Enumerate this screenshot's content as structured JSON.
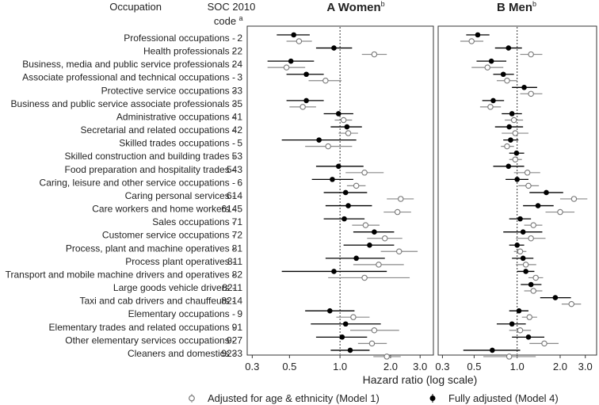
{
  "header": {
    "occupation_col": "Occupation",
    "soc_col": "SOC 2010",
    "soc_col2": "code",
    "soc_sup": "a"
  },
  "legend": {
    "model1": "Adjusted for age & ethnicity (Model 1)",
    "model4": "Fully adjusted (Model 4)"
  },
  "chart_data": {
    "type": "forest",
    "xlabel": "Hazard ratio (log scale)",
    "xscale": "log",
    "xlim": [
      0.28,
      3.6
    ],
    "ticks": [
      0.3,
      0.5,
      1.0,
      2.0,
      3.0
    ],
    "tick_labels": [
      "0.3",
      "0.5",
      "1.0",
      "2.0",
      "3.0"
    ],
    "reference_line": 1.0,
    "occupations": [
      {
        "name": "Professional occupations",
        "code": "2"
      },
      {
        "name": "Health professionals",
        "code": "22"
      },
      {
        "name": "Business, media and public service professionals",
        "code": "24"
      },
      {
        "name": "Associate professional and technical occupations",
        "code": "3"
      },
      {
        "name": "Protective service occupations",
        "code": "33"
      },
      {
        "name": "Business and public service associate professionals",
        "code": "35"
      },
      {
        "name": "Administrative occupations",
        "code": "41"
      },
      {
        "name": "Secretarial and related occupations",
        "code": "42"
      },
      {
        "name": "Skilled trades occupations",
        "code": "5"
      },
      {
        "name": "Skilled construction and building trades",
        "code": "53"
      },
      {
        "name": "Food preparation and hospitality trades",
        "code": "543"
      },
      {
        "name": "Caring, leisure and other service occupations",
        "code": "6"
      },
      {
        "name": "Caring personal services",
        "code": "614"
      },
      {
        "name": "Care workers and home workers",
        "code": "6145"
      },
      {
        "name": "Sales occupations",
        "code": "71"
      },
      {
        "name": "Customer service occupations",
        "code": "72"
      },
      {
        "name": "Process, plant and machine operatives",
        "code": "81"
      },
      {
        "name": "Process plant operatives",
        "code": "811"
      },
      {
        "name": "Transport and mobile machine drivers and operatives",
        "code": "82"
      },
      {
        "name": "Large goods vehicle drivers",
        "code": "8211"
      },
      {
        "name": "Taxi and cab drivers and chauffeurs",
        "code": "8214"
      },
      {
        "name": "Elementary occupations",
        "code": "9"
      },
      {
        "name": "Elementary trades and related occupations",
        "code": "91"
      },
      {
        "name": "Other elementary services occupations",
        "code": "927"
      },
      {
        "name": "Cleaners and domestics",
        "code": "9233"
      }
    ],
    "panels": [
      {
        "letter": "A",
        "title": "Women",
        "title_sup": "b",
        "model1": [
          [
            0.57,
            0.48,
            0.68
          ],
          [
            1.6,
            1.35,
            1.9
          ],
          [
            0.48,
            0.37,
            0.62
          ],
          [
            0.82,
            0.65,
            1.02
          ],
          null,
          [
            0.6,
            0.5,
            0.72
          ],
          [
            1.05,
            0.93,
            1.18
          ],
          [
            1.12,
            0.98,
            1.28
          ],
          [
            0.85,
            0.62,
            1.18
          ],
          null,
          [
            1.4,
            1.08,
            1.82
          ],
          [
            1.25,
            1.1,
            1.42
          ],
          [
            2.3,
            1.9,
            2.75
          ],
          [
            2.2,
            1.82,
            2.65
          ],
          [
            1.42,
            1.18,
            1.72
          ],
          [
            1.85,
            1.45,
            2.35
          ],
          [
            2.25,
            1.75,
            2.9
          ],
          [
            1.7,
            1.2,
            2.4
          ],
          [
            1.4,
            0.85,
            2.6
          ],
          null,
          null,
          [
            1.2,
            0.95,
            1.5
          ],
          [
            1.6,
            1.15,
            2.25
          ],
          [
            1.55,
            1.28,
            1.9
          ],
          [
            1.9,
            1.58,
            2.3
          ]
        ],
        "model4": [
          [
            0.53,
            0.42,
            0.66
          ],
          [
            0.92,
            0.72,
            1.18
          ],
          [
            0.51,
            0.37,
            0.7
          ],
          [
            0.63,
            0.48,
            0.8
          ],
          null,
          [
            0.63,
            0.48,
            0.8
          ],
          [
            0.98,
            0.8,
            1.2
          ],
          [
            1.1,
            0.88,
            1.35
          ],
          [
            0.75,
            0.45,
            1.25
          ],
          null,
          [
            0.98,
            0.72,
            1.38
          ],
          [
            0.9,
            0.68,
            1.2
          ],
          [
            1.08,
            0.8,
            1.45
          ],
          [
            1.12,
            0.82,
            1.55
          ],
          [
            1.06,
            0.8,
            1.4
          ],
          [
            1.6,
            1.2,
            2.1
          ],
          [
            1.5,
            1.05,
            2.1
          ],
          [
            1.25,
            0.82,
            1.85
          ],
          [
            0.92,
            0.45,
            1.9
          ],
          null,
          null,
          [
            0.87,
            0.62,
            1.22
          ],
          [
            1.08,
            0.67,
            1.75
          ],
          [
            1.03,
            0.72,
            1.45
          ],
          [
            1.15,
            0.88,
            1.5
          ]
        ]
      },
      {
        "letter": "B",
        "title": "Men",
        "title_sup": "b",
        "model1": [
          [
            0.48,
            0.4,
            0.58
          ],
          [
            1.25,
            1.05,
            1.5
          ],
          [
            0.62,
            0.48,
            0.8
          ],
          [
            0.85,
            0.72,
            1.0
          ],
          [
            1.25,
            1.05,
            1.5
          ],
          [
            0.65,
            0.55,
            0.77
          ],
          [
            0.95,
            0.82,
            1.1
          ],
          [
            0.97,
            0.78,
            1.2
          ],
          [
            0.85,
            0.77,
            0.95
          ],
          [
            0.97,
            0.88,
            1.08
          ],
          [
            1.18,
            0.95,
            1.45
          ],
          [
            1.2,
            1.02,
            1.42
          ],
          [
            2.5,
            2.0,
            3.1
          ],
          [
            2.0,
            1.58,
            2.52
          ],
          [
            1.3,
            1.12,
            1.5
          ],
          [
            1.25,
            0.98,
            1.58
          ],
          [
            1.05,
            0.95,
            1.16
          ],
          [
            1.15,
            0.98,
            1.36
          ],
          [
            1.35,
            1.2,
            1.52
          ],
          [
            1.3,
            1.12,
            1.5
          ],
          [
            2.4,
            2.05,
            2.8
          ],
          [
            1.22,
            1.08,
            1.38
          ],
          [
            1.05,
            0.88,
            1.25
          ],
          [
            1.55,
            1.22,
            1.95
          ],
          [
            0.88,
            0.58,
            1.35
          ]
        ],
        "model4": [
          [
            0.53,
            0.44,
            0.64
          ],
          [
            0.87,
            0.7,
            1.08
          ],
          [
            0.66,
            0.52,
            0.84
          ],
          [
            0.8,
            0.68,
            0.95
          ],
          [
            1.12,
            0.92,
            1.38
          ],
          [
            0.68,
            0.57,
            0.81
          ],
          [
            0.92,
            0.78,
            1.08
          ],
          [
            0.88,
            0.7,
            1.1
          ],
          [
            0.9,
            0.8,
            1.02
          ],
          [
            0.99,
            0.88,
            1.12
          ],
          [
            0.87,
            0.68,
            1.12
          ],
          [
            1.0,
            0.83,
            1.2
          ],
          [
            1.6,
            1.22,
            2.1
          ],
          [
            1.4,
            1.1,
            1.8
          ],
          [
            1.05,
            0.88,
            1.25
          ],
          [
            1.1,
            0.8,
            1.5
          ],
          [
            1.0,
            0.88,
            1.12
          ],
          [
            1.1,
            0.92,
            1.3
          ],
          [
            1.15,
            1.0,
            1.32
          ],
          [
            1.25,
            1.06,
            1.48
          ],
          [
            1.85,
            1.45,
            2.38
          ],
          [
            1.03,
            0.88,
            1.2
          ],
          [
            0.92,
            0.72,
            1.15
          ],
          [
            1.2,
            0.92,
            1.55
          ],
          [
            0.67,
            0.42,
            1.05
          ]
        ]
      }
    ]
  }
}
